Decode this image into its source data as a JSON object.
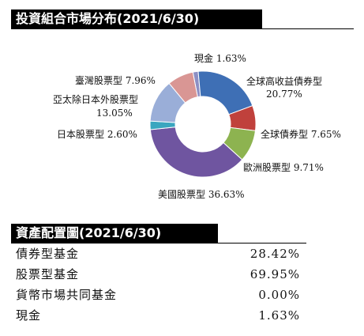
{
  "market_section": {
    "title": "投資組合市場分布(2021/6/30)"
  },
  "allocation_section": {
    "title": "資產配置圖(2021/6/30)",
    "rows": [
      {
        "label": "債券型基金",
        "value": "28.42%"
      },
      {
        "label": "股票型基金",
        "value": "69.95%"
      },
      {
        "label": "貨幣市場共同基金",
        "value": "0.00%"
      },
      {
        "label": "現金",
        "value": "1.63%"
      }
    ]
  },
  "chart_data": {
    "type": "pie",
    "variant": "donut",
    "title": "",
    "slices": [
      {
        "name": "現金",
        "value": 1.63,
        "display": "現金 1.63%",
        "color": "#8c8fc4"
      },
      {
        "name": "全球高收益債券型",
        "value": 20.77,
        "display_lines": [
          "全球高收益債券型",
          "20.77%"
        ],
        "color": "#3e6fb5"
      },
      {
        "name": "全球債券型",
        "value": 7.65,
        "display": "全球債券型 7.65%",
        "color": "#c0413c"
      },
      {
        "name": "歐洲股票型",
        "value": 9.71,
        "display": "歐洲股票型 9.71%",
        "color": "#8db350"
      },
      {
        "name": "美國股票型",
        "value": 36.63,
        "display": "美國股票型 36.63%",
        "color": "#6f55a0"
      },
      {
        "name": "日本股票型",
        "value": 2.6,
        "display": "日本股票型 2.60%",
        "color": "#3aa6bf"
      },
      {
        "name": "亞太除日本外股票型",
        "value": 13.05,
        "display_lines": [
          "亞太除日本外股票型",
          "13.05%"
        ],
        "color": "#9aaed8"
      },
      {
        "name": "臺灣股票型",
        "value": 7.96,
        "display": "臺灣股票型 7.96%",
        "color": "#d99694"
      }
    ]
  }
}
